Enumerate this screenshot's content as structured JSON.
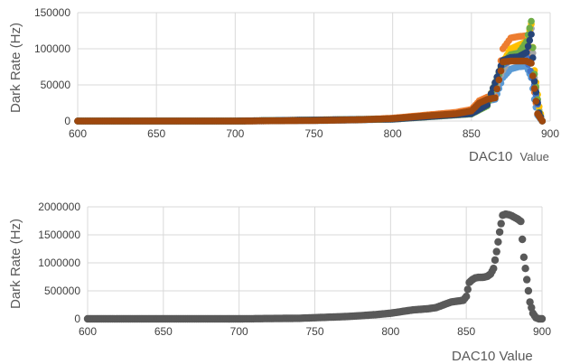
{
  "chart_data": [
    {
      "type": "scatter",
      "xlabel_main": "DAC10",
      "xlabel_unit": "Value",
      "ylabel": "Dark Rate (Hz)",
      "xlim": [
        600,
        900
      ],
      "ylim": [
        0,
        150000
      ],
      "x_ticks": [
        600,
        650,
        700,
        750,
        800,
        850,
        900
      ],
      "y_ticks": [
        0,
        50000,
        100000,
        150000
      ],
      "grid": true,
      "series": [
        {
          "color": "#5b9bd5",
          "x": [
            600,
            650,
            700,
            750,
            780,
            800,
            820,
            840,
            850,
            855,
            860,
            865,
            870,
            875,
            880,
            885,
            888,
            890,
            892,
            895
          ],
          "y": [
            0,
            0,
            0,
            500,
            1500,
            3000,
            6000,
            9000,
            12000,
            20000,
            28000,
            30000,
            60000,
            72000,
            75000,
            76000,
            60000,
            30000,
            8000,
            0
          ]
        },
        {
          "color": "#ed7d31",
          "x": [
            600,
            650,
            700,
            750,
            780,
            800,
            820,
            840,
            850,
            855,
            860,
            865,
            870,
            875,
            880,
            885,
            888,
            890,
            892,
            895
          ],
          "y": [
            0,
            0,
            0,
            800,
            2000,
            4000,
            8000,
            12000,
            16000,
            28000,
            33000,
            34000,
            100000,
            115000,
            117000,
            118000,
            90000,
            40000,
            10000,
            0
          ]
        },
        {
          "color": "#a5a5a5",
          "x": [
            600,
            700,
            800,
            850,
            860,
            870,
            875,
            880,
            885,
            888,
            890,
            893,
            895
          ],
          "y": [
            0,
            0,
            2500,
            10000,
            22000,
            70000,
            90000,
            95000,
            100000,
            128000,
            60000,
            15000,
            0
          ]
        },
        {
          "color": "#ffc000",
          "x": [
            600,
            700,
            800,
            850,
            860,
            870,
            875,
            880,
            885,
            888,
            890,
            893,
            895
          ],
          "y": [
            0,
            0,
            3000,
            11000,
            24000,
            82000,
            100000,
            105000,
            110000,
            134000,
            70000,
            20000,
            0
          ]
        },
        {
          "color": "#4472c4",
          "x": [
            600,
            700,
            800,
            850,
            860,
            870,
            875,
            880,
            885,
            890,
            893,
            895
          ],
          "y": [
            0,
            0,
            2800,
            10500,
            23000,
            78000,
            85000,
            86000,
            88000,
            50000,
            10000,
            0
          ]
        },
        {
          "color": "#70ad47",
          "x": [
            600,
            700,
            800,
            850,
            860,
            870,
            875,
            880,
            885,
            888,
            890,
            893,
            895
          ],
          "y": [
            0,
            0,
            2600,
            9800,
            21000,
            80000,
            92000,
            94000,
            110000,
            138000,
            65000,
            12000,
            0
          ]
        },
        {
          "color": "#264478",
          "x": [
            600,
            700,
            800,
            850,
            860,
            870,
            875,
            880,
            885,
            888,
            890,
            893,
            895
          ],
          "y": [
            0,
            0,
            2700,
            10200,
            22500,
            84000,
            88000,
            89000,
            95000,
            120000,
            55000,
            11000,
            0
          ]
        },
        {
          "color": "#9e480e",
          "x": [
            600,
            650,
            700,
            750,
            780,
            800,
            820,
            840,
            850,
            855,
            860,
            865,
            870,
            875,
            880,
            885,
            888,
            890,
            892,
            895
          ],
          "y": [
            0,
            0,
            0,
            700,
            1800,
            3500,
            7000,
            10000,
            14000,
            25000,
            30000,
            32000,
            82000,
            83000,
            83000,
            83000,
            80000,
            45000,
            10000,
            0
          ]
        }
      ]
    },
    {
      "type": "scatter",
      "xlabel": "DAC10 Value",
      "ylabel": "Dark Rate (Hz)",
      "xlim": [
        600,
        900
      ],
      "ylim": [
        0,
        2000000
      ],
      "x_ticks": [
        600,
        650,
        700,
        750,
        800,
        850,
        900
      ],
      "y_ticks": [
        0,
        500000,
        1000000,
        1500000,
        2000000
      ],
      "grid": true,
      "series": [
        {
          "color": "#595959",
          "x": [
            600,
            620,
            640,
            660,
            680,
            700,
            720,
            740,
            750,
            760,
            770,
            780,
            790,
            800,
            805,
            810,
            815,
            820,
            825,
            830,
            835,
            840,
            845,
            848,
            850,
            852,
            854,
            856,
            858,
            860,
            862,
            864,
            866,
            868,
            870,
            872,
            874,
            876,
            878,
            880,
            882,
            884,
            886,
            888,
            890,
            892,
            894,
            896,
            898,
            900
          ],
          "y": [
            0,
            0,
            0,
            0,
            0,
            0,
            5000,
            10000,
            20000,
            30000,
            40000,
            55000,
            75000,
            100000,
            120000,
            140000,
            160000,
            170000,
            180000,
            200000,
            250000,
            300000,
            320000,
            330000,
            400000,
            650000,
            700000,
            730000,
            740000,
            740000,
            745000,
            760000,
            800000,
            900000,
            1200000,
            1550000,
            1850000,
            1870000,
            1860000,
            1840000,
            1810000,
            1780000,
            1740000,
            1100000,
            700000,
            300000,
            100000,
            20000,
            0,
            0
          ]
        }
      ]
    }
  ]
}
